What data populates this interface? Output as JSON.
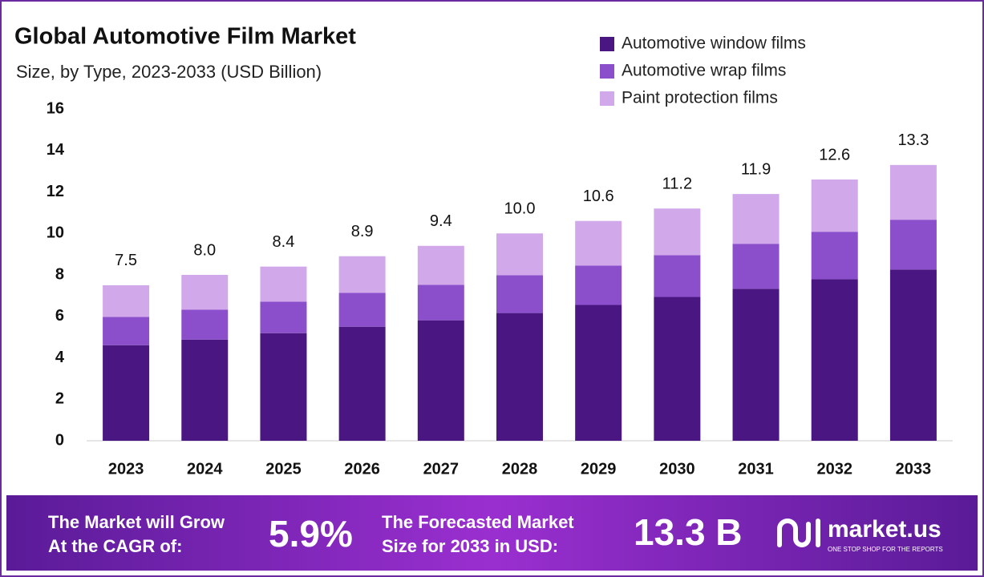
{
  "chart_data": {
    "type": "stacked_bar",
    "title": "Global Automotive Film Market",
    "subtitle": "Size, by Type, 2023-2033 (USD Billion)",
    "categories": [
      "2023",
      "2024",
      "2025",
      "2026",
      "2027",
      "2028",
      "2029",
      "2030",
      "2031",
      "2032",
      "2033"
    ],
    "series": [
      {
        "name": "Automotive window films",
        "color": "#4a1782",
        "values": [
          4.61,
          4.88,
          5.19,
          5.5,
          5.81,
          6.16,
          6.55,
          6.94,
          7.33,
          7.79,
          8.26
        ]
      },
      {
        "name": "Automotive wrap films",
        "color": "#8b4fcb",
        "values": [
          1.36,
          1.44,
          1.52,
          1.63,
          1.71,
          1.82,
          1.9,
          2.01,
          2.17,
          2.29,
          2.4
        ]
      },
      {
        "name": "Paint protection films",
        "color": "#d1a9eb",
        "values": [
          1.53,
          1.68,
          1.69,
          1.77,
          1.88,
          2.02,
          2.15,
          2.25,
          2.4,
          2.52,
          2.64
        ]
      }
    ],
    "totals": [
      7.5,
      8.0,
      8.4,
      8.9,
      9.4,
      10.0,
      10.6,
      11.2,
      11.9,
      12.6,
      13.3
    ],
    "value_labels": [
      "7.5",
      "8.0",
      "8.4",
      "8.9",
      "9.4",
      "10.0",
      "10.6",
      "11.2",
      "11.9",
      "12.6",
      "13.3"
    ],
    "ylim": [
      0,
      16
    ],
    "yticks": [
      0,
      2,
      4,
      6,
      8,
      10,
      12,
      14,
      16
    ],
    "grid": false,
    "legend": "top-right"
  },
  "footer": {
    "cagr_label": [
      "The Market will Grow",
      "At the CAGR of:"
    ],
    "cagr": "5.9%",
    "forecast_label": [
      "The Forecasted Market",
      "Size for 2033 in USD:"
    ],
    "forecast": "13.3 B",
    "brand": "market.us",
    "tagline": "ONE STOP SHOP FOR THE REPORTS"
  }
}
